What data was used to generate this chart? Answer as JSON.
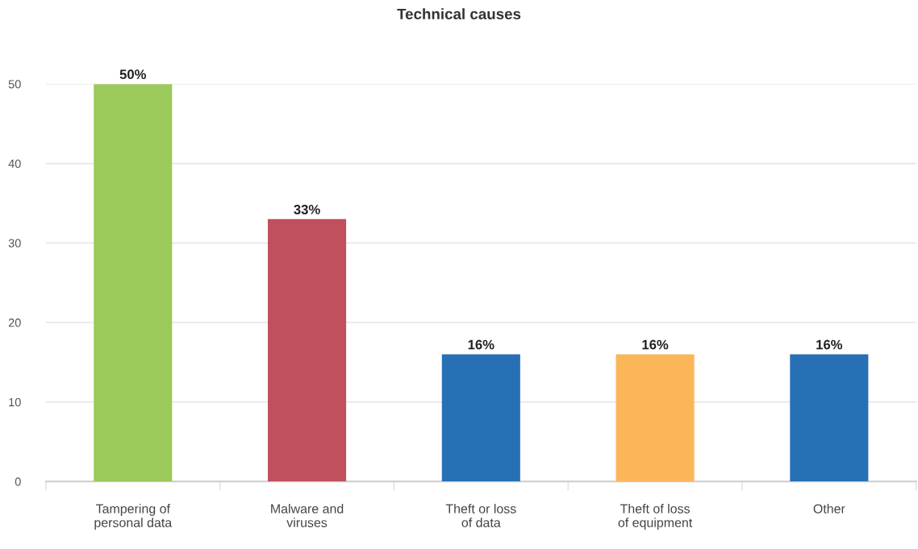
{
  "chart_data": {
    "type": "bar",
    "title": "Technical causes",
    "categories": [
      "Tampering of\npersonal data",
      "Malware and\nviruses",
      "Theft or loss\nof data",
      "Theft of loss\nof equipment",
      "Other"
    ],
    "values": [
      50,
      33,
      16,
      16,
      16
    ],
    "colors": [
      "#9bca5a",
      "#c0505e",
      "#2770b5",
      "#fbb65a",
      "#2770b5"
    ],
    "value_labels": [
      "50%",
      "33%",
      "16%",
      "16%",
      "16%"
    ],
    "ylim": [
      0,
      50
    ],
    "yticks": [
      0,
      10,
      20,
      30,
      40,
      50
    ],
    "grid": "y",
    "legend": false
  }
}
